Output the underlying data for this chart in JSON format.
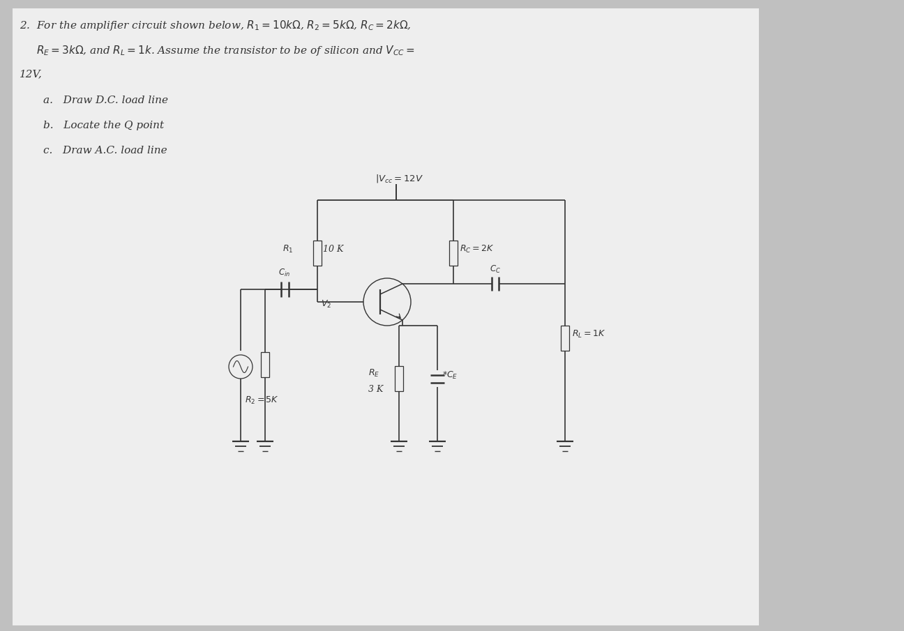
{
  "bg_color": "#c0c0c0",
  "paper_color": "#ececec",
  "line_color": "#333333",
  "lw": 1.2,
  "text_color": "#222222",
  "circuit": {
    "vcc_label": "$|V_{cc} = 12 V$",
    "r1_label1": "$R_1$",
    "r1_label2": "10 K",
    "r2_label": "$R_2 = 5 K$",
    "rc_label": "$R_C = 2 K$",
    "re_label1": "$R_E$",
    "re_label2": "3 K",
    "rl_label": "$R_L = 1 K$",
    "cin_label": "$C_{in}$",
    "cc_label": "$C_C$",
    "ce_label": "$*C_E$",
    "v2_label": "$V_2$"
  },
  "text_lines": [
    "2.  For the amplifier circuit shown below, $R_1 = 10k\\Omega$, $R_2 = 5k\\Omega$, $R_C = 2k\\Omega$,",
    "     $R_E = 3k\\Omega$, and $R_L = 1k$. Assume the transistor to be of silicon and $V_{CC} =$",
    "12V,",
    "     a.   Draw D.C. load line",
    "     b.   Locate the Q point",
    "     c.   Draw A.C. load line"
  ]
}
